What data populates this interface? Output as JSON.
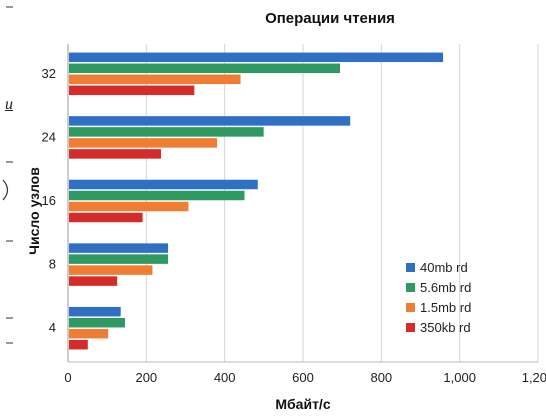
{
  "chart_data": {
    "type": "bar",
    "orientation": "horizontal",
    "title": "Операции чтения",
    "xlabel": "Мбайт/с",
    "ylabel": "Число узлов",
    "categories": [
      "32",
      "24",
      "16",
      "8",
      "4"
    ],
    "series": [
      {
        "name": "40mb rd",
        "color": "#2f6fc4",
        "values": [
          955,
          718,
          482,
          253,
          132
        ]
      },
      {
        "name": "5.6mb rd",
        "color": "#2e9a62",
        "values": [
          692,
          497,
          448,
          253,
          143
        ]
      },
      {
        "name": "1.5mb rd",
        "color": "#f07d34",
        "values": [
          438,
          378,
          305,
          213,
          100
        ]
      },
      {
        "name": "350kb rd",
        "color": "#d62b2b",
        "values": [
          320,
          235,
          188,
          123,
          48
        ]
      }
    ],
    "xlim": [
      0,
      1200
    ],
    "xticks": [
      "0",
      "200",
      "400",
      "600",
      "800",
      "1,000",
      "1,200"
    ],
    "grid": true,
    "legend_position": "bottom-right"
  },
  "margin_fragments": [
    "u"
  ]
}
